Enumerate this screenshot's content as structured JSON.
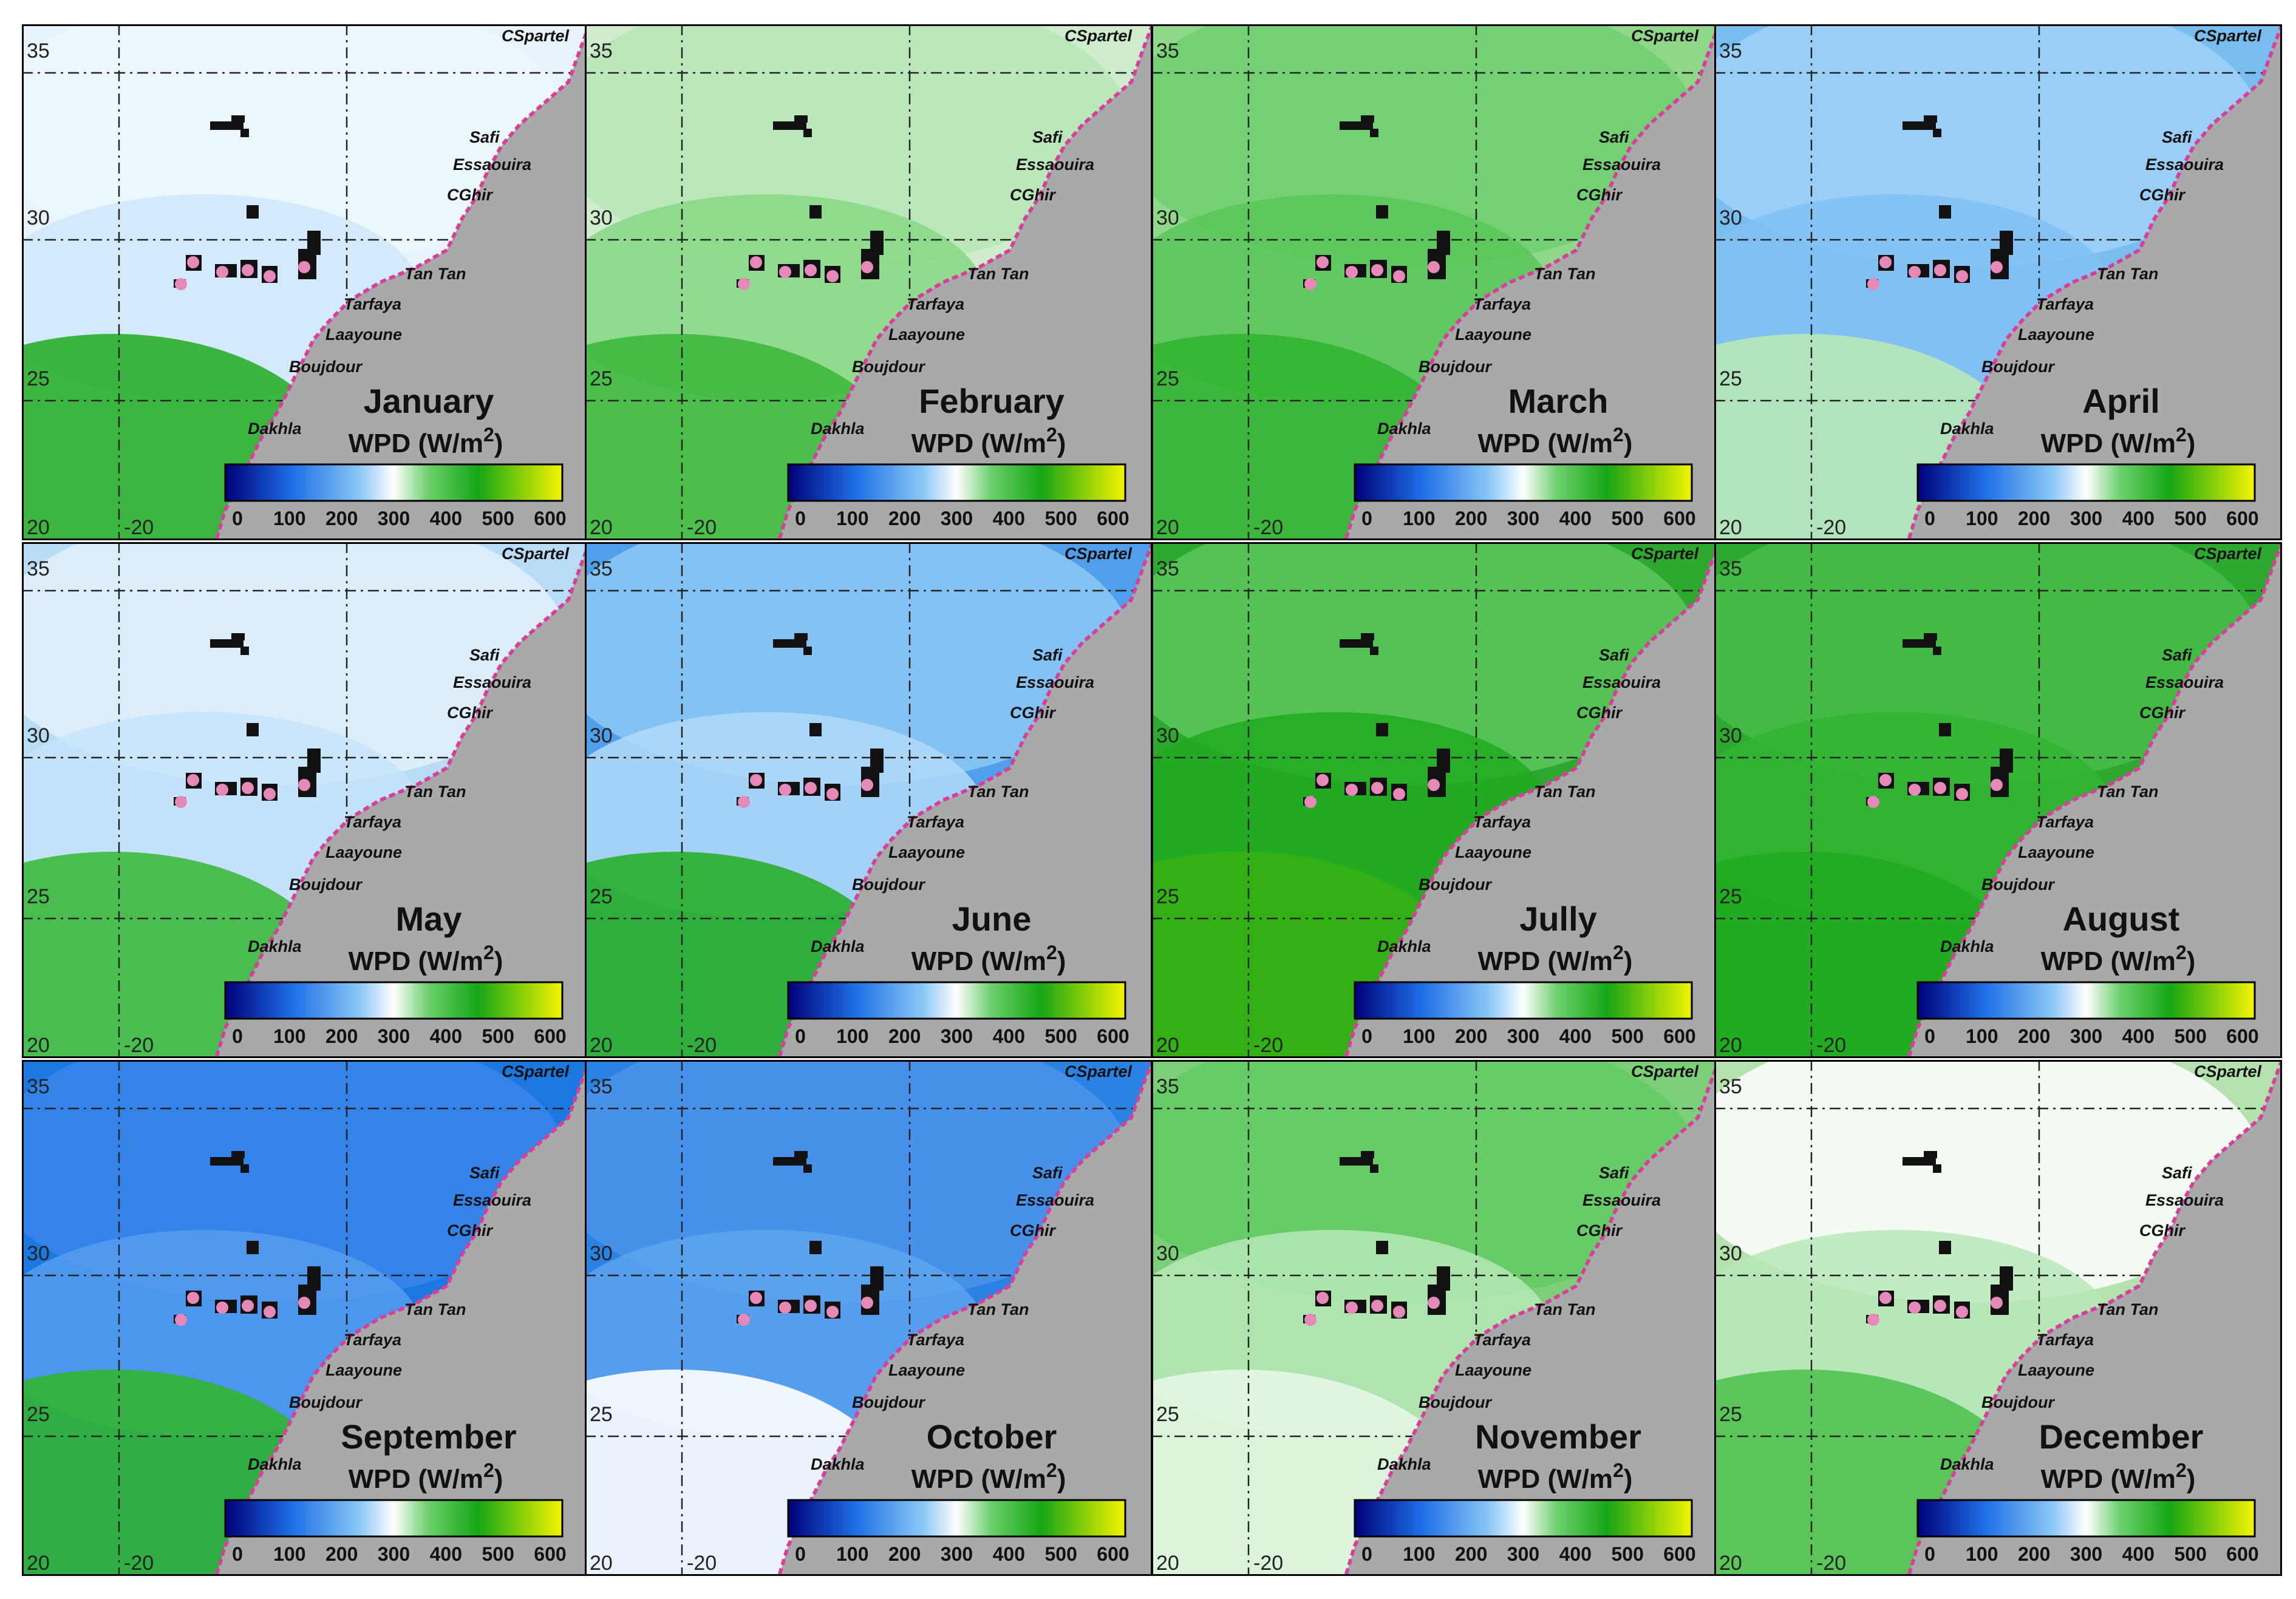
{
  "map": {
    "units_label": "WPD (W/m",
    "units_sup": "2",
    "units_close": ")",
    "colorbar": {
      "ticks": [
        "0",
        "100",
        "200",
        "300",
        "400",
        "500",
        "600"
      ],
      "min": 0,
      "max": 600,
      "stops": [
        {
          "v": 0,
          "c": "#00007a"
        },
        {
          "v": 120,
          "c": "#1e6fe6"
        },
        {
          "v": 240,
          "c": "#8cc8f5"
        },
        {
          "v": 300,
          "c": "#ffffff"
        },
        {
          "v": 360,
          "c": "#6ed06e"
        },
        {
          "v": 450,
          "c": "#16a616"
        },
        {
          "v": 600,
          "c": "#f4f400"
        }
      ]
    },
    "lat_labels": [
      "35",
      "30",
      "25",
      "20"
    ],
    "lon_label": "-20",
    "cities": [
      "CSpartel",
      "Safi",
      "Essaouira",
      "CGhir",
      "Tan Tan",
      "Tarfaya",
      "Laayoune",
      "Boujdour",
      "Dakhla"
    ],
    "land_color": "#a9a9a9",
    "coast_color": "#d6409b",
    "islands_color": "#111111",
    "panels": [
      {
        "month": "January",
        "bg": "#e8f3fb",
        "wpd": {
          "north": 290,
          "mid": 275,
          "south": 430
        }
      },
      {
        "month": "February",
        "bg": "#cfeccc",
        "wpd": {
          "north": 330,
          "mid": 350,
          "south": 410
        }
      },
      {
        "month": "March",
        "bg": "#8fd88a",
        "wpd": {
          "north": 360,
          "mid": 380,
          "south": 420
        }
      },
      {
        "month": "April",
        "bg": "#78bdf0",
        "wpd": {
          "north": 250,
          "mid": 230,
          "south": 330
        }
      },
      {
        "month": "May",
        "bg": "#b9dcf6",
        "wpd": {
          "north": 285,
          "mid": 270,
          "south": 410
        }
      },
      {
        "month": "June",
        "bg": "#4f9fea",
        "wpd": {
          "north": 240,
          "mid": 260,
          "south": 430
        }
      },
      {
        "month": "Jully",
        "bg": "#2ea82e",
        "wpd": {
          "north": 380,
          "mid": 440,
          "south": 470
        }
      },
      {
        "month": "August",
        "bg": "#2ea82e",
        "wpd": {
          "north": 400,
          "mid": 420,
          "south": 440
        }
      },
      {
        "month": "September",
        "bg": "#1a78e0",
        "wpd": {
          "north": 150,
          "mid": 180,
          "south": 420
        }
      },
      {
        "month": "October",
        "bg": "#2a82e4",
        "wpd": {
          "north": 170,
          "mid": 190,
          "south": 300
        }
      },
      {
        "month": "November",
        "bg": "#7cce79",
        "wpd": {
          "north": 370,
          "mid": 330,
          "south": 310
        }
      },
      {
        "month": "December",
        "bg": "#b3e2ad",
        "wpd": {
          "north": 300,
          "mid": 330,
          "south": 390
        }
      }
    ]
  }
}
